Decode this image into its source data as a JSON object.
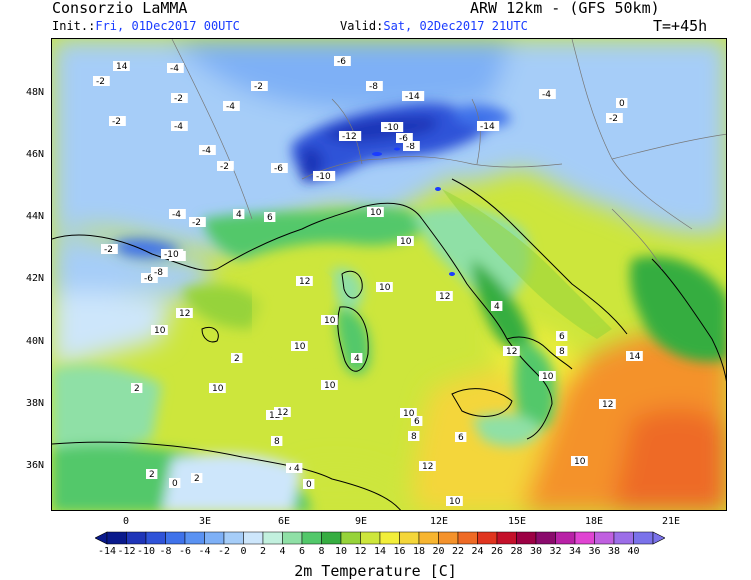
{
  "header": {
    "title": "Consorzio LaMMA",
    "init_label": "Init.:",
    "init_value": "Fri, 01Dec2017 00UTC",
    "model": "ARW 12km - (GFS 50km)",
    "valid_label": "Valid:",
    "valid_value": "Sat, 02Dec2017 21UTC",
    "lead_time": "T=+45h"
  },
  "map": {
    "lat_labels": [
      "48N",
      "46N",
      "44N",
      "42N",
      "40N",
      "38N",
      "36N"
    ],
    "lon_labels": [
      "0",
      "3E",
      "6E",
      "9E",
      "12E",
      "15E",
      "18E",
      "21E"
    ],
    "temperature_labels": [
      "0",
      "-2",
      "-4",
      "-2",
      "-4",
      "-2",
      "-4",
      "-2",
      "-4",
      "-2",
      "-6",
      "-6",
      "-8",
      "-14",
      "-10",
      "-12",
      "-10",
      "-14",
      "-8",
      "-6",
      "-4",
      "-2",
      "-2",
      "-6",
      "-2",
      "-8",
      "-10",
      "-2",
      "-4",
      "0",
      "4",
      "6",
      "10",
      "10",
      "10",
      "8",
      "6",
      "4",
      "2",
      "0",
      "12",
      "10",
      "12",
      "10",
      "10",
      "12",
      "10",
      "12",
      "10",
      "10",
      "12",
      "10",
      "12",
      "14",
      "12",
      "10",
      "8",
      "6",
      "4",
      "4",
      "2",
      "0",
      "2",
      "2",
      "4",
      "6",
      "8",
      "10",
      "12",
      "14"
    ]
  },
  "colorbar": {
    "ticks": [
      "-14",
      "-12",
      "-10",
      "-8",
      "-6",
      "-4",
      "-2",
      "0",
      "2",
      "4",
      "6",
      "8",
      "10",
      "12",
      "14",
      "16",
      "18",
      "20",
      "22",
      "24",
      "26",
      "28",
      "30",
      "32",
      "34",
      "36",
      "38",
      "40"
    ],
    "colors": [
      "#0a1a8c",
      "#1f35b8",
      "#2f53d8",
      "#3f72ea",
      "#5a92f2",
      "#7eb0f6",
      "#a6cdf8",
      "#cde6fb",
      "#c2f0de",
      "#8fe0a6",
      "#52c86a",
      "#36ad41",
      "#96d33a",
      "#cde63c",
      "#f2ee3a",
      "#f4d63a",
      "#f7b530",
      "#f4922b",
      "#ee6a25",
      "#e0351f",
      "#c4102a",
      "#9c0044",
      "#8a0a6c",
      "#b821a6",
      "#e044d2",
      "#c060e0",
      "#9c6ee8",
      "#7a72ea"
    ],
    "title": "2m Temperature [C]"
  }
}
